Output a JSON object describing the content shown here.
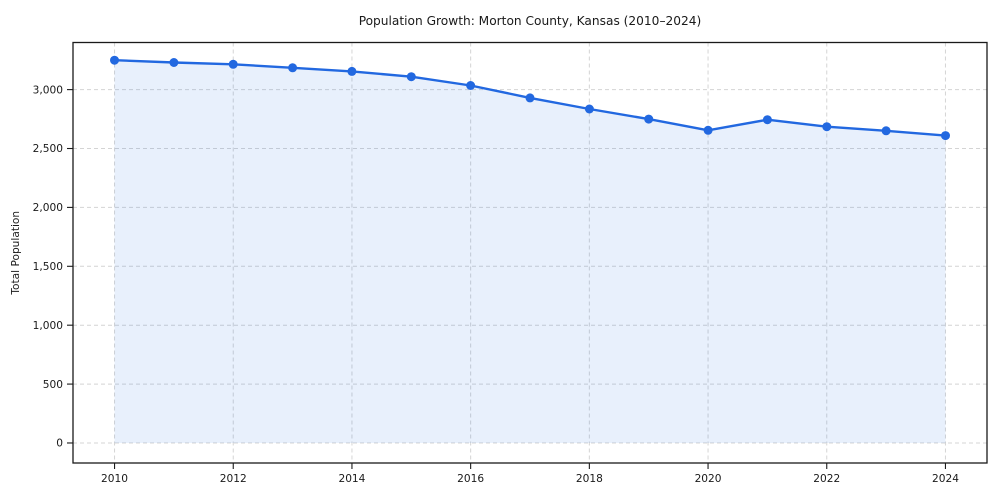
{
  "chart": {
    "title": "Population Growth: Morton County, Kansas (2010–2024)",
    "ylabel": "Total Population"
  },
  "chart_data": {
    "type": "line",
    "title": "Population Growth: Morton County, Kansas (2010–2024)",
    "xlabel": "",
    "ylabel": "Total Population",
    "x": [
      2010,
      2011,
      2012,
      2013,
      2014,
      2015,
      2016,
      2017,
      2018,
      2019,
      2020,
      2021,
      2022,
      2023,
      2024
    ],
    "series": [
      {
        "name": "Total Population",
        "values": [
          3250,
          3230,
          3215,
          3185,
          3155,
          3110,
          3035,
          2930,
          2835,
          2750,
          2655,
          2745,
          2685,
          2650,
          2610
        ]
      }
    ],
    "xticks": [
      2010,
      2012,
      2014,
      2016,
      2018,
      2020,
      2022,
      2024
    ],
    "yticks": [
      0,
      500,
      1000,
      1500,
      2000,
      2500,
      3000
    ],
    "xlim": [
      2009.3,
      2024.7
    ],
    "ylim": [
      -170,
      3400
    ],
    "grid": true,
    "grid_style": "dashed",
    "legend": false,
    "area_fill": true,
    "area_baseline": 0,
    "marker": "circle",
    "colors": {
      "line": "#2268e0",
      "marker": "#2268e0",
      "area": "rgba(34, 104, 224, 0.10)",
      "grid": "#d4d4d4",
      "spine": "#1a1a1a",
      "tick": "#1a1a1a",
      "text": "#1a1a1a",
      "background": "#ffffff"
    }
  }
}
